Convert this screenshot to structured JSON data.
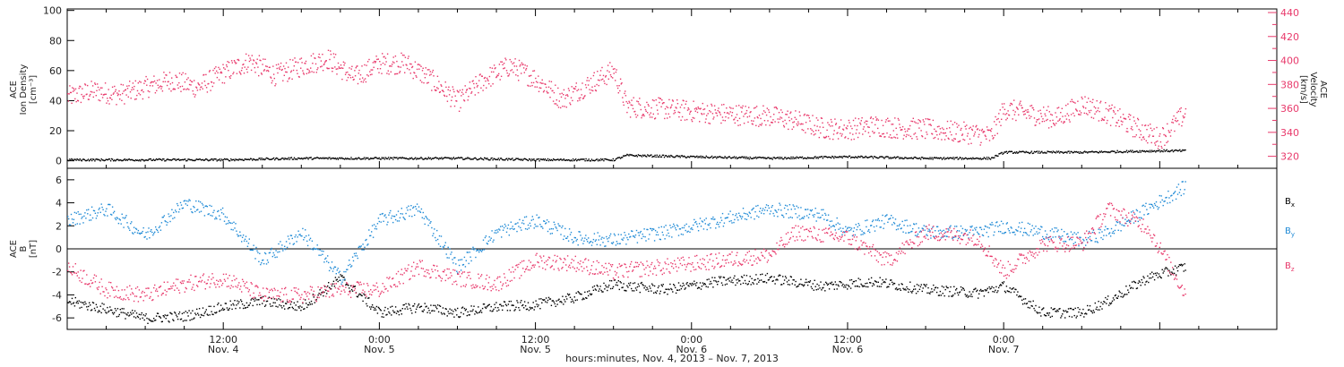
{
  "chart_data": [
    {
      "type": "scatter",
      "panel": "top",
      "ylabel_lines": [
        "ACE",
        "Ion Density",
        "[cm⁻³]"
      ],
      "ylabel_right_lines": [
        "ACE",
        "Velocity",
        "[km/s]"
      ],
      "ylim": [
        -5,
        101
      ],
      "ylim_right": [
        310,
        443
      ],
      "yticks": [
        "0",
        "20",
        "40",
        "60",
        "80",
        "100"
      ],
      "yticks_right": [
        "320",
        "340",
        "360",
        "380",
        "400",
        "420",
        "440"
      ],
      "grid": false,
      "series": [
        {
          "axis": "left",
          "color": "#000000",
          "x_hours": [
            0,
            6,
            12,
            18,
            22,
            24,
            30,
            36,
            42,
            43,
            48,
            54,
            60,
            66,
            71,
            72,
            78,
            84,
            86
          ],
          "values": [
            1,
            1,
            1,
            2,
            2,
            2,
            2,
            1,
            1,
            4,
            3,
            2,
            3,
            2,
            2,
            6,
            6,
            7,
            7
          ]
        },
        {
          "axis": "right",
          "color": "#e8396b",
          "x_hours": [
            0,
            2,
            4,
            6,
            8,
            10,
            12,
            14,
            16,
            18,
            20,
            22,
            24,
            26,
            28,
            30,
            32,
            34,
            36,
            38,
            40,
            42,
            43,
            46,
            50,
            54,
            56,
            58,
            60,
            62,
            64,
            66,
            68,
            70,
            71,
            72,
            74,
            76,
            78,
            80,
            82,
            84,
            86
          ],
          "values": [
            370,
            375,
            372,
            378,
            384,
            378,
            390,
            400,
            388,
            396,
            402,
            386,
            398,
            398,
            384,
            366,
            384,
            396,
            385,
            368,
            380,
            392,
            362,
            360,
            356,
            354,
            350,
            344,
            343,
            346,
            344,
            343,
            341,
            339,
            337,
            360,
            356,
            352,
            364,
            356,
            345,
            335,
            357
          ]
        }
      ]
    },
    {
      "type": "scatter",
      "panel": "bottom",
      "ylabel_lines": [
        "ACE",
        "B",
        "[nT]"
      ],
      "ylim": [
        -7,
        7
      ],
      "yticks": [
        "-6",
        "-4",
        "-2",
        "0",
        "2",
        "4",
        "6"
      ],
      "grid": false,
      "zero_line": true,
      "legend": {
        "placement": "right",
        "entries": [
          "B",
          "B",
          "B"
        ],
        "subscripts": [
          "x",
          "y",
          "z"
        ]
      },
      "series": [
        {
          "name": "Bx",
          "color": "#000000",
          "x_hours": [
            0,
            3,
            6,
            9,
            12,
            15,
            18,
            21,
            24,
            27,
            30,
            33,
            36,
            39,
            42,
            43,
            46,
            50,
            54,
            58,
            62,
            66,
            70,
            72,
            75,
            78,
            80,
            83,
            86
          ],
          "values": [
            -4.5,
            -5.2,
            -6,
            -5.8,
            -5,
            -4.5,
            -5,
            -2.5,
            -5.5,
            -5,
            -5.5,
            -5,
            -4.8,
            -4.2,
            -3,
            -3.2,
            -3.5,
            -2.8,
            -2.5,
            -3.2,
            -2.8,
            -3.5,
            -3.8,
            -3.2,
            -5.5,
            -5.5,
            -4.5,
            -2.5,
            -1.5
          ]
        },
        {
          "name": "By",
          "color": "#1f8ad6",
          "x_hours": [
            0,
            3,
            6,
            9,
            12,
            15,
            18,
            21,
            24,
            27,
            30,
            33,
            36,
            39,
            42,
            43,
            46,
            50,
            54,
            58,
            60,
            63,
            66,
            70,
            72,
            75,
            78,
            80,
            83,
            86
          ],
          "values": [
            2.5,
            3.5,
            1.2,
            4,
            3,
            -1,
            1.5,
            -2.5,
            2.5,
            3.5,
            -1.5,
            1.5,
            2.5,
            1,
            0.8,
            1,
            1.5,
            2.5,
            3.5,
            3,
            1.5,
            2.5,
            1.5,
            1.5,
            2,
            1.5,
            0.8,
            1.5,
            3.5,
            5.5
          ]
        },
        {
          "name": "Bz",
          "color": "#e8396b",
          "x_hours": [
            0,
            3,
            6,
            9,
            12,
            15,
            18,
            21,
            24,
            27,
            30,
            33,
            36,
            39,
            42,
            43,
            46,
            50,
            54,
            56,
            60,
            63,
            66,
            70,
            72,
            75,
            78,
            80,
            83,
            86
          ],
          "values": [
            -1.5,
            -3.5,
            -4,
            -3,
            -2.5,
            -4,
            -4,
            -3.5,
            -3.5,
            -1.5,
            -2.5,
            -3,
            -1,
            -1.2,
            -2,
            -1.8,
            -1.5,
            -1,
            -0.5,
            1.5,
            1,
            -1,
            1.5,
            1,
            -2,
            0.5,
            0.5,
            3.5,
            2,
            -4
          ]
        }
      ]
    }
  ],
  "x_axis": {
    "range_hours": [
      0,
      93
    ],
    "ticks": [
      {
        "time": "12:00",
        "date": "Nov. 4",
        "hour": 12
      },
      {
        "time": "0:00",
        "date": "Nov. 5",
        "hour": 24
      },
      {
        "time": "12:00",
        "date": "Nov. 5",
        "hour": 36
      },
      {
        "time": "0:00",
        "date": "Nov. 6",
        "hour": 48
      },
      {
        "time": "12:00",
        "date": "Nov. 6",
        "hour": 60
      },
      {
        "time": "0:00",
        "date": "Nov. 7",
        "hour": 72
      }
    ],
    "xlabel": "hours:minutes, Nov.  4, 2013 – Nov.  7, 2013"
  },
  "colors": {
    "black": "#000000",
    "pink": "#e8396b",
    "blue": "#1f8ad6"
  }
}
